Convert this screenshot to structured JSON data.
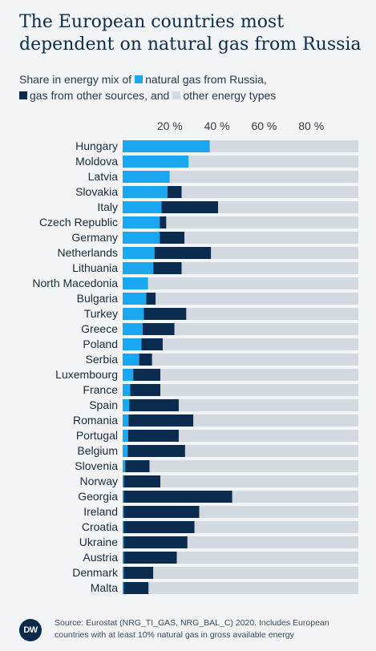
{
  "header": {
    "title": "The European countries most dependent on natural gas from Russia",
    "subtitle_prefix": "Share in energy mix of",
    "legend_russia": "natural gas from Russia,",
    "legend_other_gas": "gas from other sources, and",
    "legend_other_energy": "other energy types"
  },
  "colors": {
    "russia": "#1aa7f0",
    "other_gas": "#0b2b4f",
    "other_energy": "#d3d9e0"
  },
  "footer": {
    "logo_text": "DW",
    "source": "Source: Eurostat (NRG_TI_GAS,  NRG_BAL_C) 2020. Includes European countries with at least 10% natural gas in gross available energy"
  },
  "chart_data": {
    "type": "bar",
    "orientation": "horizontal",
    "stacked": true,
    "xlim": [
      0,
      100
    ],
    "x_ticks": [
      "20 %",
      "40 %",
      "60 %",
      "80 %"
    ],
    "x_tick_values": [
      20,
      40,
      60,
      80
    ],
    "categories": [
      "Hungary",
      "Moldova",
      "Latvia",
      "Slovakia",
      "Italy",
      "Czech Republic",
      "Germany",
      "Netherlands",
      "Lithuania",
      "North Macedonia",
      "Bulgaria",
      "Turkey",
      "Greece",
      "Poland",
      "Serbia",
      "Luxembourg",
      "France",
      "Spain",
      "Romania",
      "Portugal",
      "Belgium",
      "Slovenia",
      "Norway",
      "Georgia",
      "Ireland",
      "Croatia",
      "Ukraine",
      "Austria",
      "Denmark",
      "Malta"
    ],
    "series": [
      {
        "name": "natural gas from Russia",
        "values": [
          37.0,
          28.0,
          20.0,
          19.0,
          16.5,
          15.7,
          15.7,
          13.5,
          13.0,
          10.8,
          10.0,
          9.0,
          8.5,
          8.0,
          7.0,
          4.5,
          3.2,
          2.8,
          2.5,
          2.3,
          2.1,
          1.1,
          0.5,
          0.5,
          0.5,
          0.5,
          0.5,
          0.5,
          0.5,
          0.5
        ]
      },
      {
        "name": "gas from other sources",
        "values": [
          0.0,
          0.0,
          0.0,
          6.0,
          24.0,
          2.8,
          10.5,
          24.0,
          12.0,
          0.0,
          4.0,
          18.0,
          13.5,
          9.0,
          5.5,
          11.5,
          12.8,
          21.0,
          27.5,
          21.5,
          24.4,
          10.3,
          15.5,
          46.0,
          32.0,
          30.0,
          27.0,
          22.5,
          12.5,
          10.5
        ]
      },
      {
        "name": "other energy types",
        "values": [
          63.0,
          72.0,
          80.0,
          75.0,
          59.5,
          81.5,
          73.8,
          62.5,
          75.0,
          89.2,
          86.0,
          73.0,
          78.0,
          83.0,
          87.5,
          84.0,
          84.0,
          76.2,
          70.0,
          76.2,
          73.5,
          88.6,
          84.0,
          53.5,
          67.5,
          69.5,
          72.5,
          77.0,
          87.0,
          89.0
        ]
      }
    ]
  }
}
